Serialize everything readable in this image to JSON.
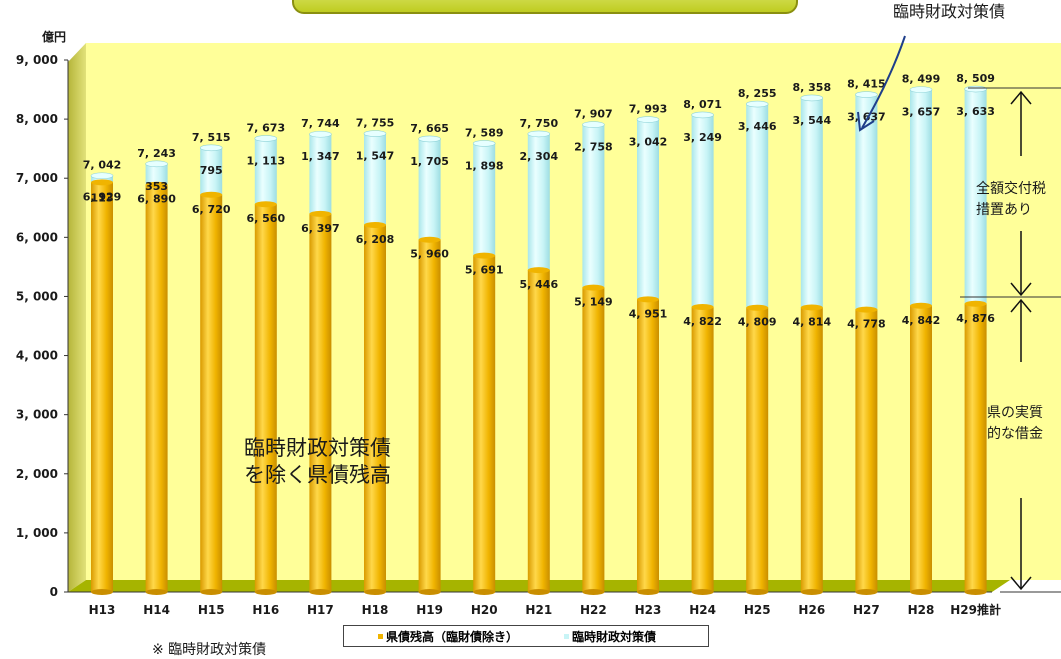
{
  "chart_data": {
    "type": "bar",
    "stacked": true,
    "ylabel": "億円",
    "ylim": [
      0,
      9000
    ],
    "yticks": [
      "0",
      "1, 000",
      "2, 000",
      "3, 000",
      "4, 000",
      "5, 000",
      "6, 000",
      "7, 000",
      "8, 000",
      "9, 000"
    ],
    "categories": [
      "H13",
      "H14",
      "H15",
      "H16",
      "H17",
      "H18",
      "H19",
      "H20",
      "H21",
      "H22",
      "H23",
      "H24",
      "H25",
      "H26",
      "H27",
      "H28",
      "H29推計"
    ],
    "series": [
      {
        "name": "県債残高（臨財債除き）",
        "color": "#f0b400",
        "values": [
          6929,
          6890,
          6720,
          6560,
          6397,
          6208,
          5960,
          5691,
          5446,
          5149,
          4951,
          4822,
          4809,
          4814,
          4778,
          4842,
          4876
        ],
        "labels": [
          "6, 929",
          "6, 890",
          "6, 720",
          "6, 560",
          "6, 397",
          "6, 208",
          "5, 960",
          "5, 691",
          "5, 446",
          "5, 149",
          "4, 951",
          "4, 822",
          "4, 809",
          "4, 814",
          "4, 778",
          "4, 842",
          "4, 876"
        ]
      },
      {
        "name": "臨時財政対策債",
        "color": "#c8f4f6",
        "values": [
          113,
          353,
          795,
          1113,
          1347,
          1547,
          1705,
          1898,
          2304,
          2758,
          3042,
          3249,
          3446,
          3544,
          3637,
          3657,
          3633
        ],
        "labels": [
          "113",
          "353",
          "795",
          "1, 113",
          "1, 347",
          "1, 547",
          "1, 705",
          "1, 898",
          "2, 304",
          "2, 758",
          "3, 042",
          "3, 249",
          "3, 446",
          "3, 544",
          "3, 637",
          "3, 657",
          "3, 633"
        ]
      }
    ],
    "totals": [
      7042,
      7243,
      7515,
      7673,
      7744,
      7755,
      7665,
      7589,
      7750,
      7907,
      7993,
      8071,
      8255,
      8358,
      8415,
      8499,
      8509
    ],
    "total_labels": [
      "7, 042",
      "7, 243",
      "7, 515",
      "7, 673",
      "7, 744",
      "7, 755",
      "7, 665",
      "7, 589",
      "7, 750",
      "7, 907",
      "7, 993",
      "8, 071",
      "8, 255",
      "8, 358",
      "8, 415",
      "8, 499",
      "8, 509"
    ],
    "legend_position": "bottom",
    "grid": false
  },
  "annotations": {
    "top_right_callout": "臨時財政対策債",
    "inner_label_line1": "臨時財政対策債",
    "inner_label_line2": "を除く県債残高",
    "right_upper_line1": "全額交付税",
    "right_upper_line2": "措置あり",
    "right_lower_line1": "県の実質",
    "right_lower_line2": "的な借金",
    "footnote": "※ 臨時財政対策債"
  },
  "colors": {
    "plot_background": "#ffff99",
    "wall": "#c9c94a",
    "floor": "#9aa800",
    "bar_gold": "#f0b400",
    "bar_cyan": "#c8f4f6"
  }
}
